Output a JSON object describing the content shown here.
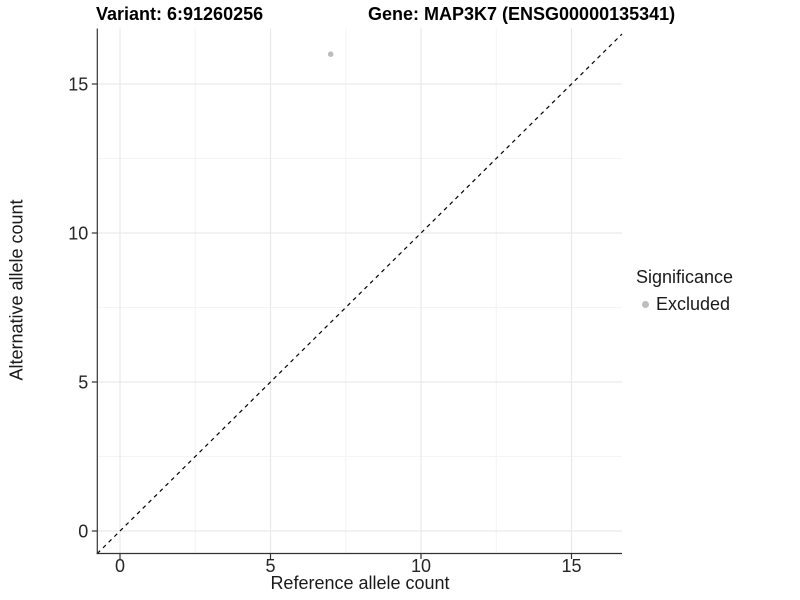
{
  "chart_data": {
    "type": "scatter",
    "titles": {
      "left": "Variant: 6:91260256",
      "right": "Gene: MAP3K7 (ENSG00000135341)"
    },
    "xlabel": "Reference allele count",
    "ylabel": "Alternative allele count",
    "x_ticks": [
      0,
      5,
      10,
      15
    ],
    "y_ticks": [
      0,
      5,
      10,
      15
    ],
    "xlim": [
      -0.8,
      16.7
    ],
    "ylim": [
      -0.8,
      16.9
    ],
    "grid": "major+minor",
    "points": [
      {
        "x": 7,
        "y": 16,
        "significance": "Excluded"
      }
    ],
    "reference_line": {
      "type": "identity",
      "slope": 1,
      "intercept": 0,
      "linetype": "dashed"
    },
    "legend": {
      "title": "Significance",
      "position": "right",
      "entries": [
        {
          "label": "Excluded",
          "color": "#bdbdbd"
        }
      ]
    },
    "colors": {
      "point": "#bdbdbd",
      "grid_major": "#e9e9e9",
      "grid_minor": "#f4f4f4",
      "axis_line": "#333333",
      "tick_text": "#262626",
      "dashed_line": "#000000"
    }
  }
}
